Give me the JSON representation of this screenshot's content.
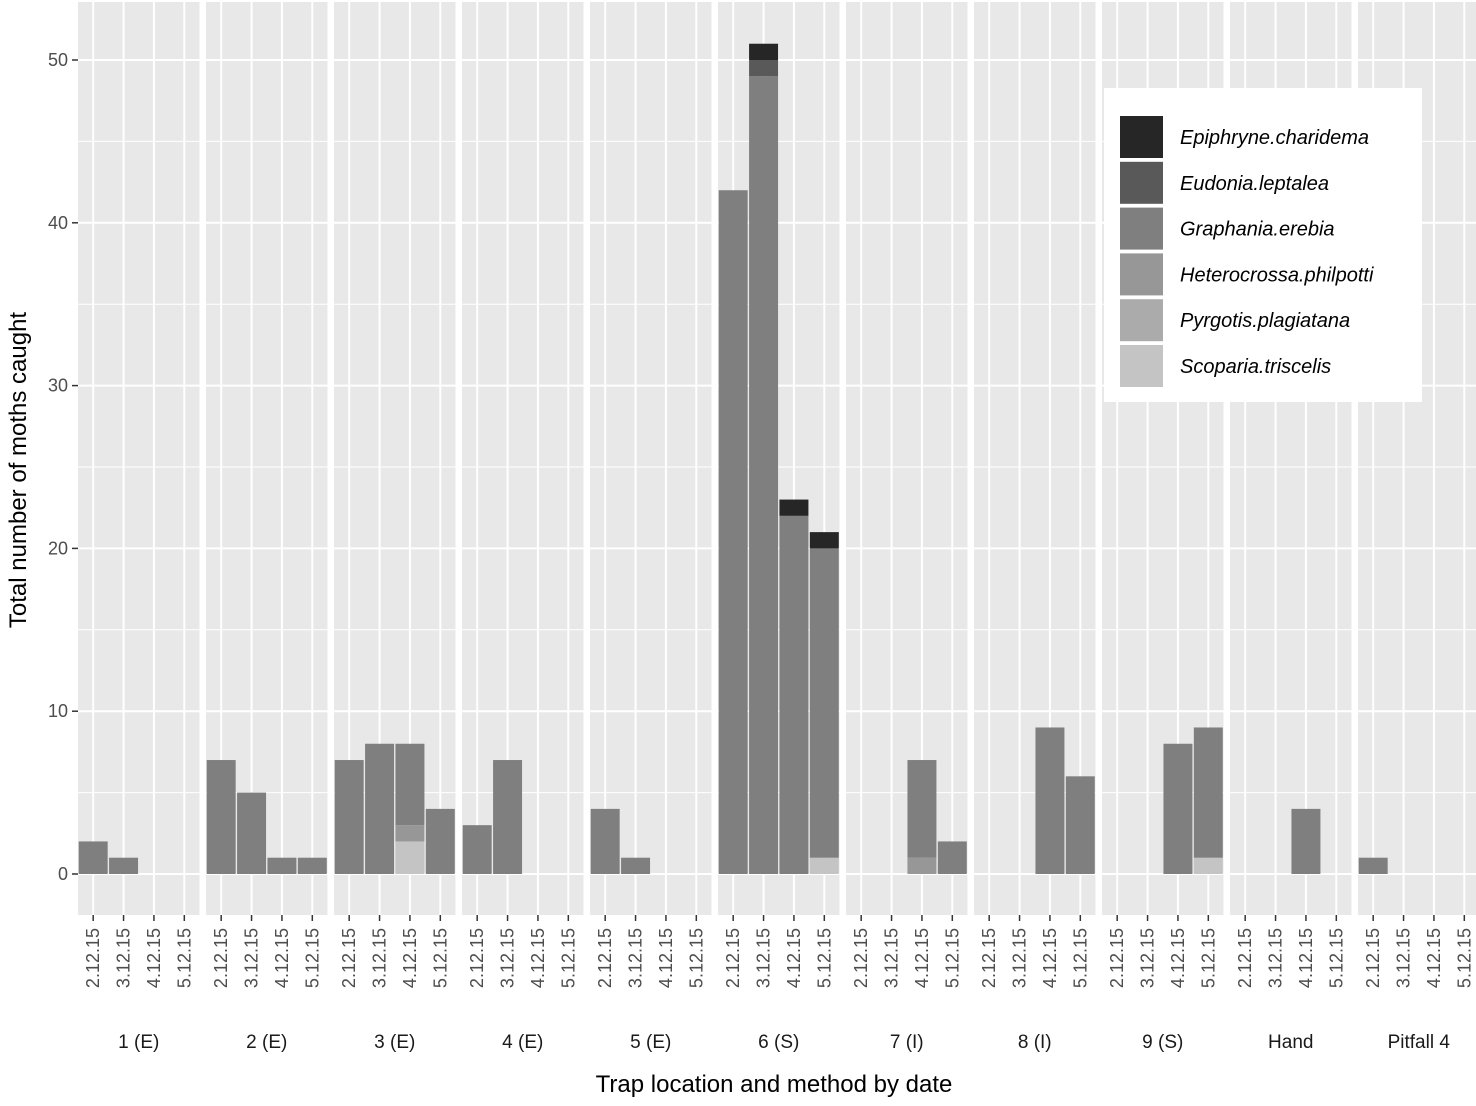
{
  "chart_data": {
    "type": "bar",
    "stacked": true,
    "title": "",
    "xlabel": "Trap location and method by date",
    "ylabel": "Total number of moths caught",
    "ylim": [
      -5,
      53
    ],
    "yticks": [
      0,
      10,
      20,
      30,
      40,
      50
    ],
    "categories": [
      "2.12.15",
      "3.12.15",
      "4.12.15",
      "5.12.15"
    ],
    "colors": {
      "panel_bg": "#e8e8e8",
      "grid": "#ffffff"
    },
    "legend": {
      "position": "top-right",
      "entries": [
        {
          "name": "Epiphryne.charidema",
          "color": "#262626"
        },
        {
          "name": "Eudonia.leptalea",
          "color": "#595959"
        },
        {
          "name": "Graphania.erebia",
          "color": "#7f7f7f"
        },
        {
          "name": "Heterocrossa.philpotti",
          "color": "#979797"
        },
        {
          "name": "Pyrgotis.plagiatana",
          "color": "#ababab"
        },
        {
          "name": "Scoparia.triscelis",
          "color": "#c4c4c4"
        }
      ]
    },
    "stack_order": [
      "Scoparia.triscelis",
      "Pyrgotis.plagiatana",
      "Heterocrossa.philpotti",
      "Graphania.erebia",
      "Eudonia.leptalea",
      "Epiphryne.charidema"
    ],
    "facets": [
      {
        "label": "1 (E)",
        "bars": [
          {
            "Graphania.erebia": 2
          },
          {
            "Graphania.erebia": 1
          },
          {},
          {}
        ]
      },
      {
        "label": "2 (E)",
        "bars": [
          {
            "Graphania.erebia": 7
          },
          {
            "Graphania.erebia": 5
          },
          {
            "Graphania.erebia": 1
          },
          {
            "Graphania.erebia": 1
          }
        ]
      },
      {
        "label": "3 (E)",
        "bars": [
          {
            "Graphania.erebia": 7
          },
          {
            "Graphania.erebia": 8
          },
          {
            "Scoparia.triscelis": 2,
            "Heterocrossa.philpotti": 1,
            "Graphania.erebia": 5
          },
          {
            "Graphania.erebia": 4
          }
        ]
      },
      {
        "label": "4 (E)",
        "bars": [
          {
            "Graphania.erebia": 3
          },
          {
            "Graphania.erebia": 7
          },
          {},
          {}
        ]
      },
      {
        "label": "5 (E)",
        "bars": [
          {
            "Graphania.erebia": 4
          },
          {
            "Graphania.erebia": 1
          },
          {},
          {}
        ]
      },
      {
        "label": "6 (S)",
        "bars": [
          {
            "Graphania.erebia": 42
          },
          {
            "Graphania.erebia": 49,
            "Eudonia.leptalea": 1,
            "Epiphryne.charidema": 1
          },
          {
            "Graphania.erebia": 22,
            "Epiphryne.charidema": 1
          },
          {
            "Scoparia.triscelis": 1,
            "Graphania.erebia": 19,
            "Epiphryne.charidema": 1
          }
        ]
      },
      {
        "label": "7 (I)",
        "bars": [
          {},
          {},
          {
            "Heterocrossa.philpotti": 1,
            "Graphania.erebia": 6
          },
          {
            "Graphania.erebia": 2
          }
        ]
      },
      {
        "label": "8 (I)",
        "bars": [
          {},
          {},
          {
            "Graphania.erebia": 9
          },
          {
            "Graphania.erebia": 6
          }
        ]
      },
      {
        "label": "9 (S)",
        "bars": [
          {},
          {},
          {
            "Graphania.erebia": 8
          },
          {
            "Scoparia.triscelis": 1,
            "Graphania.erebia": 8
          }
        ]
      },
      {
        "label": "Hand",
        "bars": [
          {},
          {},
          {
            "Graphania.erebia": 4
          },
          {}
        ]
      },
      {
        "label": "Pitfall 4",
        "bars": [
          {
            "Graphania.erebia": 1
          },
          {},
          {},
          {}
        ]
      }
    ]
  }
}
